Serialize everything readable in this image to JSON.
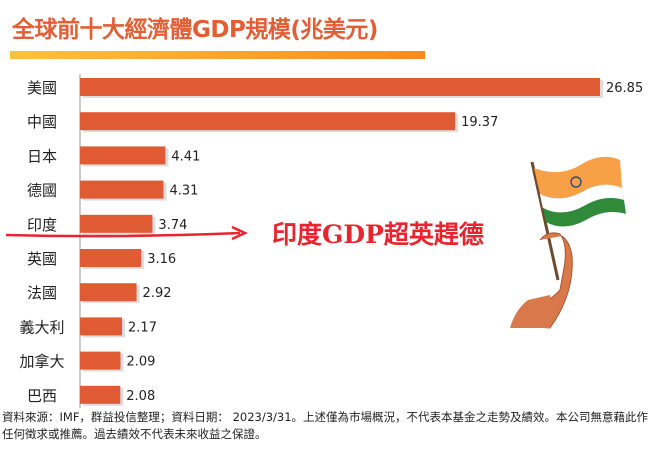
{
  "title": "全球前十大經濟體GDP規模(兆美元)",
  "annotation": "印度GDP超英趕德",
  "footer": "資料來源：IMF，群益投信整理；資料日期： 2023/3/31。上述僅為市場概況，不代表本基金之走勢及績效。本公司無意藉此作任何徵求或推薦。過去績效不代表未來收益之保證。",
  "colors": {
    "bar": "#e05a33",
    "title": "#e35d35",
    "annotation": "#e8242f"
  },
  "chart_data": {
    "type": "bar",
    "orientation": "horizontal",
    "title": "全球前十大經濟體GDP規模(兆美元)",
    "categories": [
      "美國",
      "中國",
      "日本",
      "德國",
      "印度",
      "英國",
      "法國",
      "義大利",
      "加拿大",
      "巴西"
    ],
    "values": [
      26.85,
      19.37,
      4.41,
      4.31,
      3.74,
      3.16,
      2.92,
      2.17,
      2.09,
      2.08
    ],
    "xlim": [
      0,
      27
    ],
    "grid": false,
    "xlabel": "",
    "ylabel": ""
  }
}
